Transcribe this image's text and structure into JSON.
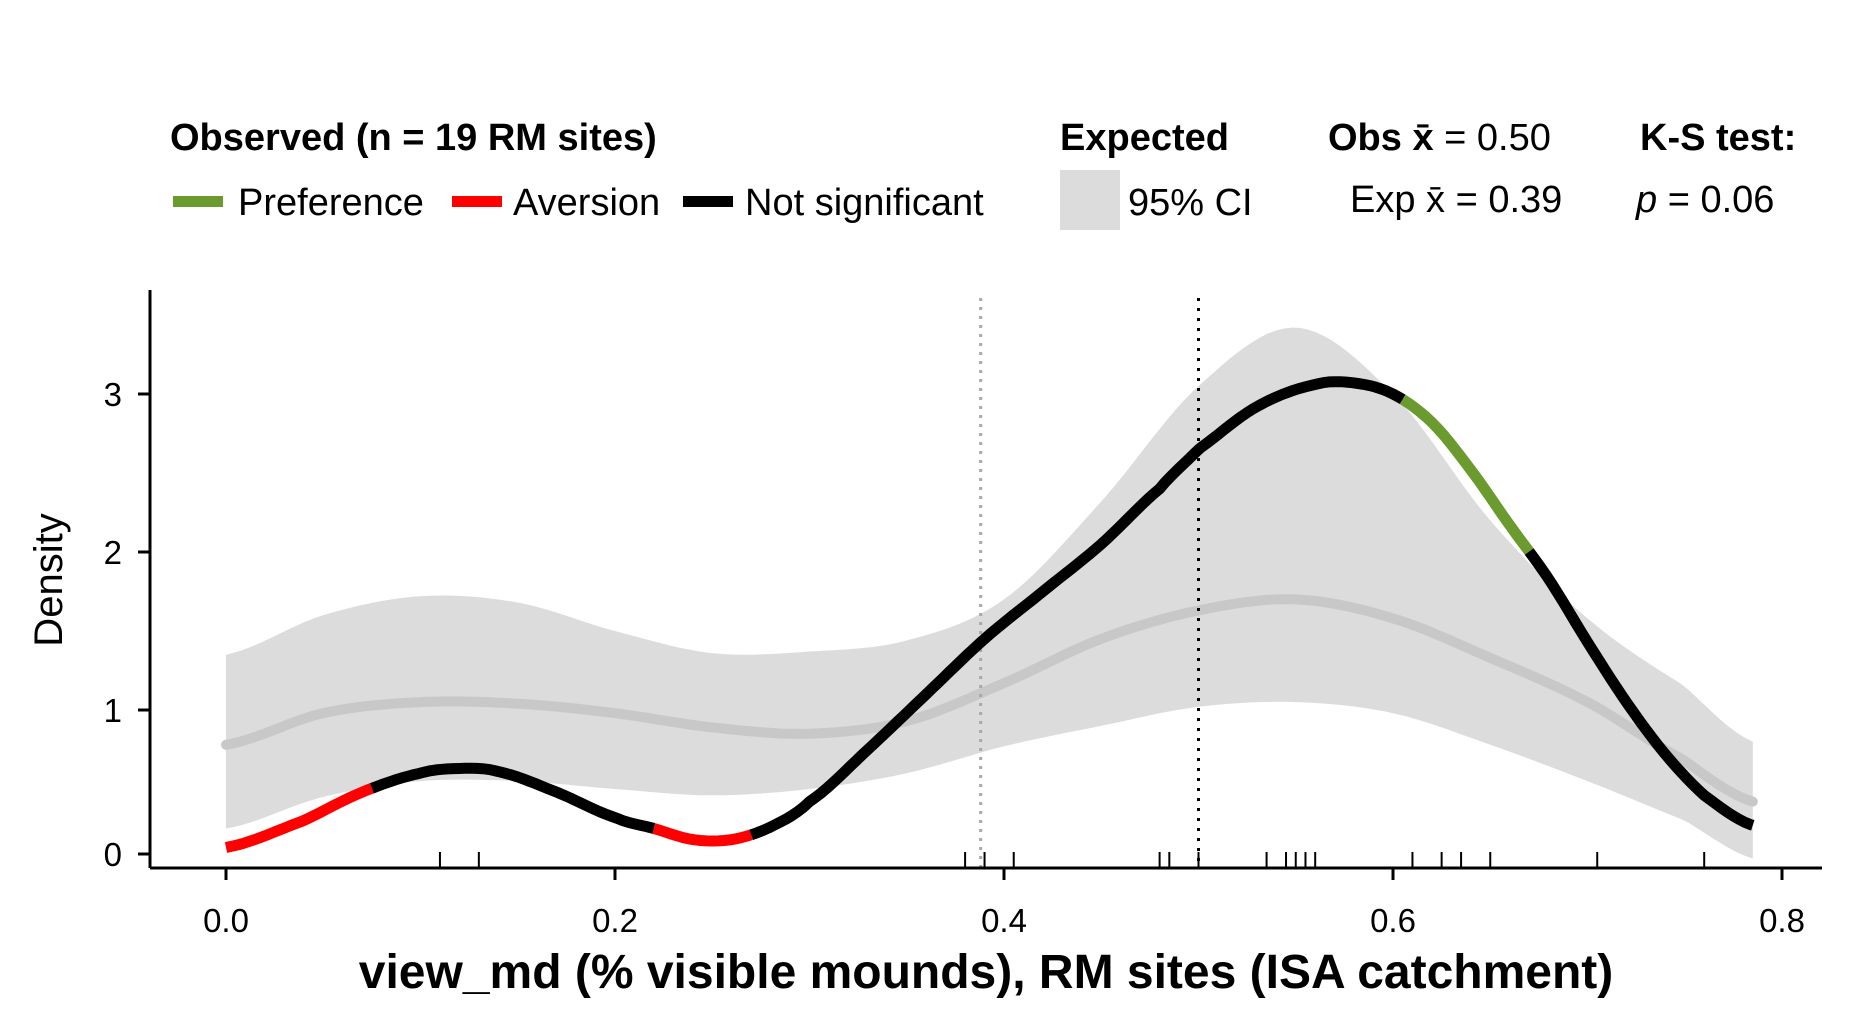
{
  "legend": {
    "observed_title": "Observed (n = 19 RM sites)",
    "preference_label": "Preference",
    "aversion_label": "Aversion",
    "ns_label": "Not significant",
    "expected_title": "Expected",
    "ci_label": "95% CI",
    "obs_mean": "Obs x̄ = 0.50",
    "exp_mean": "Exp x̄ = 0.39",
    "ks_title": "K-S test:",
    "ks_p_symbol": "p",
    "ks_p_value": " = 0.06"
  },
  "colors": {
    "preference": "#6b9a2f",
    "aversion": "#ff0000",
    "not_significant": "#000000",
    "ci_band": "#dcdcdc",
    "expected_line": "#c8c8c8",
    "exp_mean_line": "#a8a8a8"
  },
  "chart_data": {
    "type": "line",
    "xlabel": "view_md (% visible mounds), RM sites (ISA catchment)",
    "ylabel": "Density",
    "xlim": [
      -0.04,
      0.82
    ],
    "ylim": [
      -0.1,
      3.6
    ],
    "x_ticks": [
      0.0,
      0.2,
      0.4,
      0.6,
      0.8
    ],
    "x_tick_labels": [
      "0.0",
      "0.2",
      "0.4",
      "0.6",
      "0.8"
    ],
    "y_ticks": [
      0,
      1,
      2,
      3
    ],
    "y_tick_labels": [
      "0",
      "1",
      "2",
      "3"
    ],
    "obs_mean": 0.5,
    "exp_mean": 0.388,
    "observed": {
      "x": [
        0.0,
        0.04,
        0.07,
        0.1,
        0.12,
        0.14,
        0.17,
        0.2,
        0.22,
        0.24,
        0.26,
        0.28,
        0.3,
        0.33,
        0.36,
        0.39,
        0.42,
        0.45,
        0.48,
        0.5,
        0.53,
        0.56,
        0.58,
        0.6,
        0.62,
        0.64,
        0.66,
        0.68,
        0.7,
        0.72,
        0.74,
        0.76,
        0.785
      ],
      "y": [
        0.13,
        0.3,
        0.48,
        0.6,
        0.63,
        0.61,
        0.48,
        0.32,
        0.25,
        0.18,
        0.18,
        0.26,
        0.42,
        0.75,
        1.1,
        1.45,
        1.75,
        2.05,
        2.4,
        2.65,
        2.92,
        3.06,
        3.07,
        3.0,
        2.82,
        2.52,
        2.17,
        1.83,
        1.43,
        1.05,
        0.72,
        0.46,
        0.27
      ],
      "segments": [
        {
          "from": 0.0,
          "to": 0.075,
          "status": "aversion"
        },
        {
          "from": 0.075,
          "to": 0.22,
          "status": "not_significant"
        },
        {
          "from": 0.22,
          "to": 0.27,
          "status": "aversion"
        },
        {
          "from": 0.27,
          "to": 0.605,
          "status": "not_significant"
        },
        {
          "from": 0.605,
          "to": 0.67,
          "status": "preference"
        },
        {
          "from": 0.67,
          "to": 0.785,
          "status": "not_significant"
        }
      ]
    },
    "expected": {
      "x": [
        0.0,
        0.05,
        0.1,
        0.15,
        0.2,
        0.25,
        0.3,
        0.35,
        0.4,
        0.45,
        0.5,
        0.55,
        0.6,
        0.65,
        0.7,
        0.75,
        0.785
      ],
      "y": [
        0.78,
        0.98,
        1.05,
        1.04,
        0.98,
        0.89,
        0.85,
        0.93,
        1.17,
        1.45,
        1.63,
        1.7,
        1.58,
        1.33,
        1.05,
        0.68,
        0.42
      ],
      "ci_upper": [
        1.35,
        1.6,
        1.72,
        1.68,
        1.5,
        1.36,
        1.37,
        1.44,
        1.7,
        2.32,
        3.05,
        3.42,
        3.0,
        2.2,
        1.58,
        1.15,
        0.8
      ],
      "ci_lower": [
        0.25,
        0.45,
        0.55,
        0.55,
        0.5,
        0.46,
        0.5,
        0.6,
        0.77,
        0.9,
        1.02,
        1.05,
        0.98,
        0.78,
        0.55,
        0.3,
        0.06
      ]
    },
    "rug": [
      0.11,
      0.13,
      0.38,
      0.39,
      0.405,
      0.48,
      0.485,
      0.5,
      0.535,
      0.545,
      0.55,
      0.555,
      0.56,
      0.61,
      0.625,
      0.635,
      0.65,
      0.705,
      0.76
    ]
  }
}
